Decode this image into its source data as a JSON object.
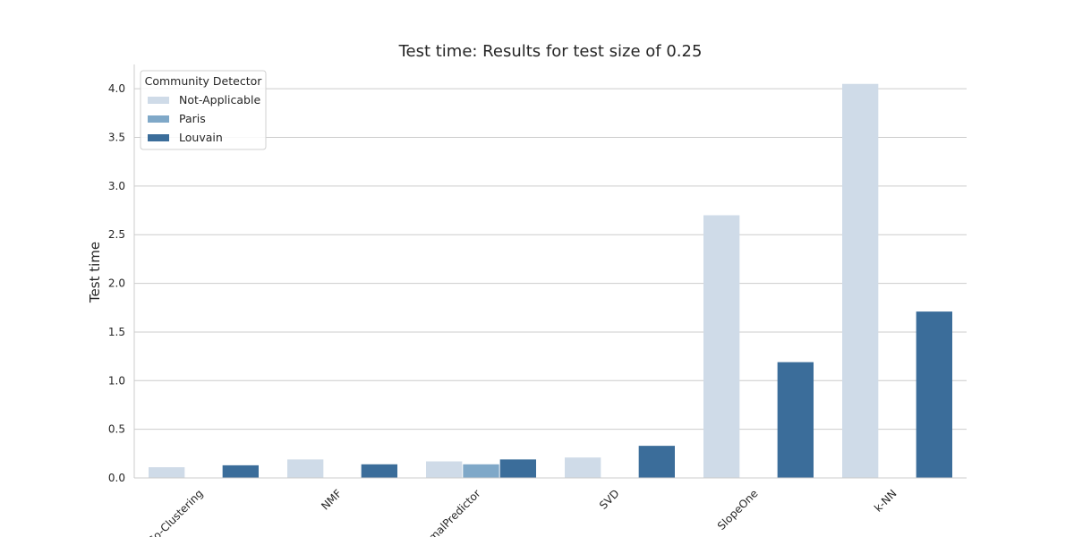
{
  "chart_data": {
    "type": "bar",
    "title": "Test time: Results for test size of 0.25",
    "xlabel": "",
    "ylabel": "Test time",
    "ylim": [
      0,
      4.25
    ],
    "yticks": [
      "0.0",
      "0.5",
      "1.0",
      "1.5",
      "2.0",
      "2.5",
      "3.0",
      "3.5",
      "4.0"
    ],
    "categories": [
      "Co-Clustering",
      "NMF",
      "NormalPredictor",
      "SVD",
      "SlopeOne",
      "k-NN"
    ],
    "grid": true,
    "legend": {
      "title": "Community Detector",
      "placement": "top-left"
    },
    "series": [
      {
        "name": "Not-Applicable",
        "color": "#cfdbe8",
        "values": [
          0.11,
          0.19,
          0.17,
          0.21,
          2.7,
          4.05
        ]
      },
      {
        "name": "Paris",
        "color": "#7fa8c8",
        "values": [
          null,
          null,
          0.14,
          null,
          null,
          null
        ]
      },
      {
        "name": "Louvain",
        "color": "#3b6d9a",
        "values": [
          0.13,
          0.14,
          0.19,
          0.33,
          1.19,
          1.71
        ]
      }
    ]
  }
}
